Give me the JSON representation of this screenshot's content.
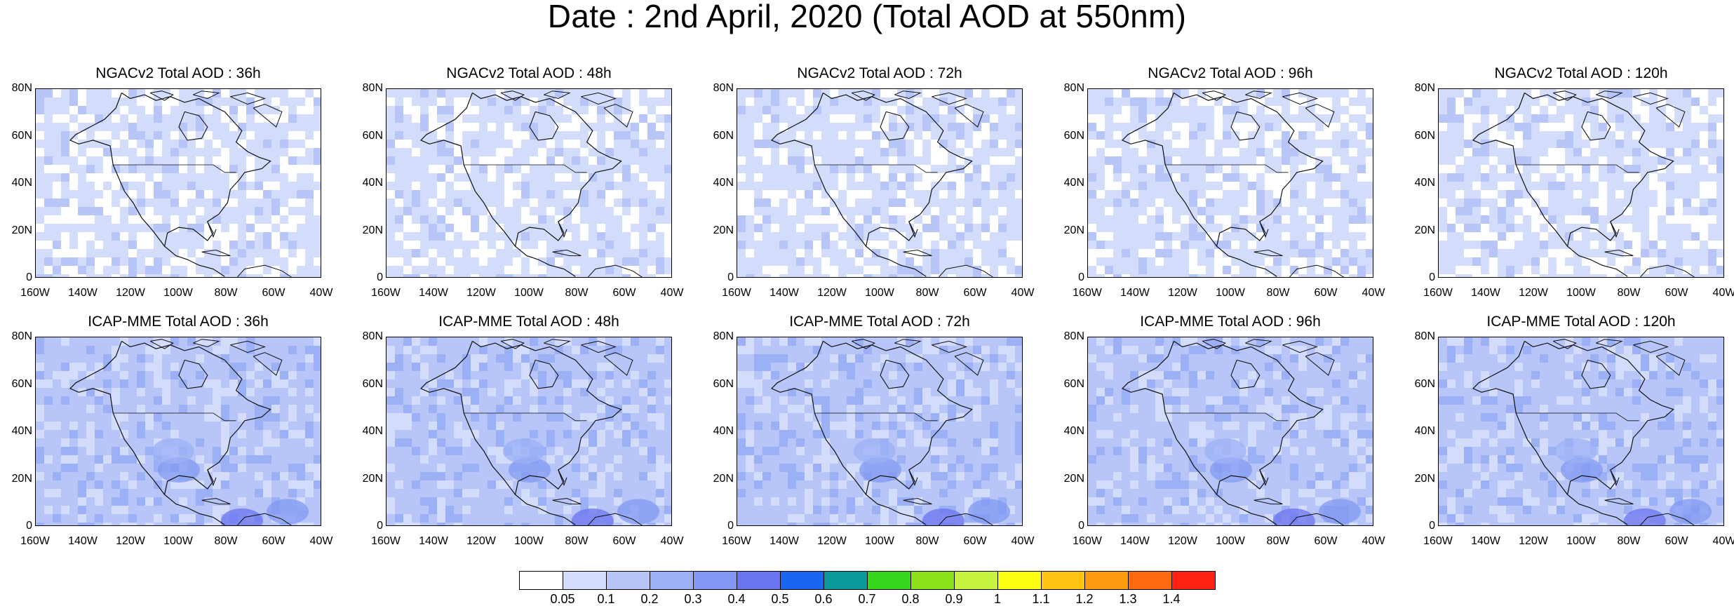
{
  "title": "Date : 2nd April, 2020 (Total AOD at 550nm)",
  "rows": [
    {
      "model": "NGACv2",
      "panels": [
        "NGACv2 Total AOD : 36h",
        "NGACv2 Total AOD : 48h",
        "NGACv2 Total AOD : 72h",
        "NGACv2 Total AOD : 96h",
        "NGACv2 Total AOD : 120h"
      ],
      "lead_hours": [
        36,
        48,
        72,
        96,
        120
      ],
      "field_level": "low"
    },
    {
      "model": "ICAP-MME",
      "panels": [
        "ICAP-MME Total AOD : 36h",
        "ICAP-MME Total AOD : 48h",
        "ICAP-MME Total AOD : 72h",
        "ICAP-MME Total AOD : 96h",
        "ICAP-MME Total AOD : 120h"
      ],
      "lead_hours": [
        36,
        48,
        72,
        96,
        120
      ],
      "field_level": "higher"
    }
  ],
  "lat_ticks": [
    "80N",
    "60N",
    "40N",
    "20N",
    "0"
  ],
  "lon_ticks": [
    "160W",
    "140W",
    "120W",
    "100W",
    "80W",
    "60W",
    "40W"
  ],
  "colorbar": {
    "levels": [
      "0.05",
      "0.1",
      "0.2",
      "0.3",
      "0.4",
      "0.5",
      "0.6",
      "0.7",
      "0.8",
      "0.9",
      "1",
      "1.1",
      "1.2",
      "1.3",
      "1.4"
    ],
    "colors": [
      "#ffffff",
      "#d4dcfb",
      "#b7c5f8",
      "#9cb0f6",
      "#8198f2",
      "#6a74ee",
      "#1966f0",
      "#0c9a9a",
      "#38d61c",
      "#8ce01a",
      "#c8f240",
      "#ffff14",
      "#ffc414",
      "#ff9b10",
      "#ff6a10",
      "#ff2212"
    ]
  }
}
